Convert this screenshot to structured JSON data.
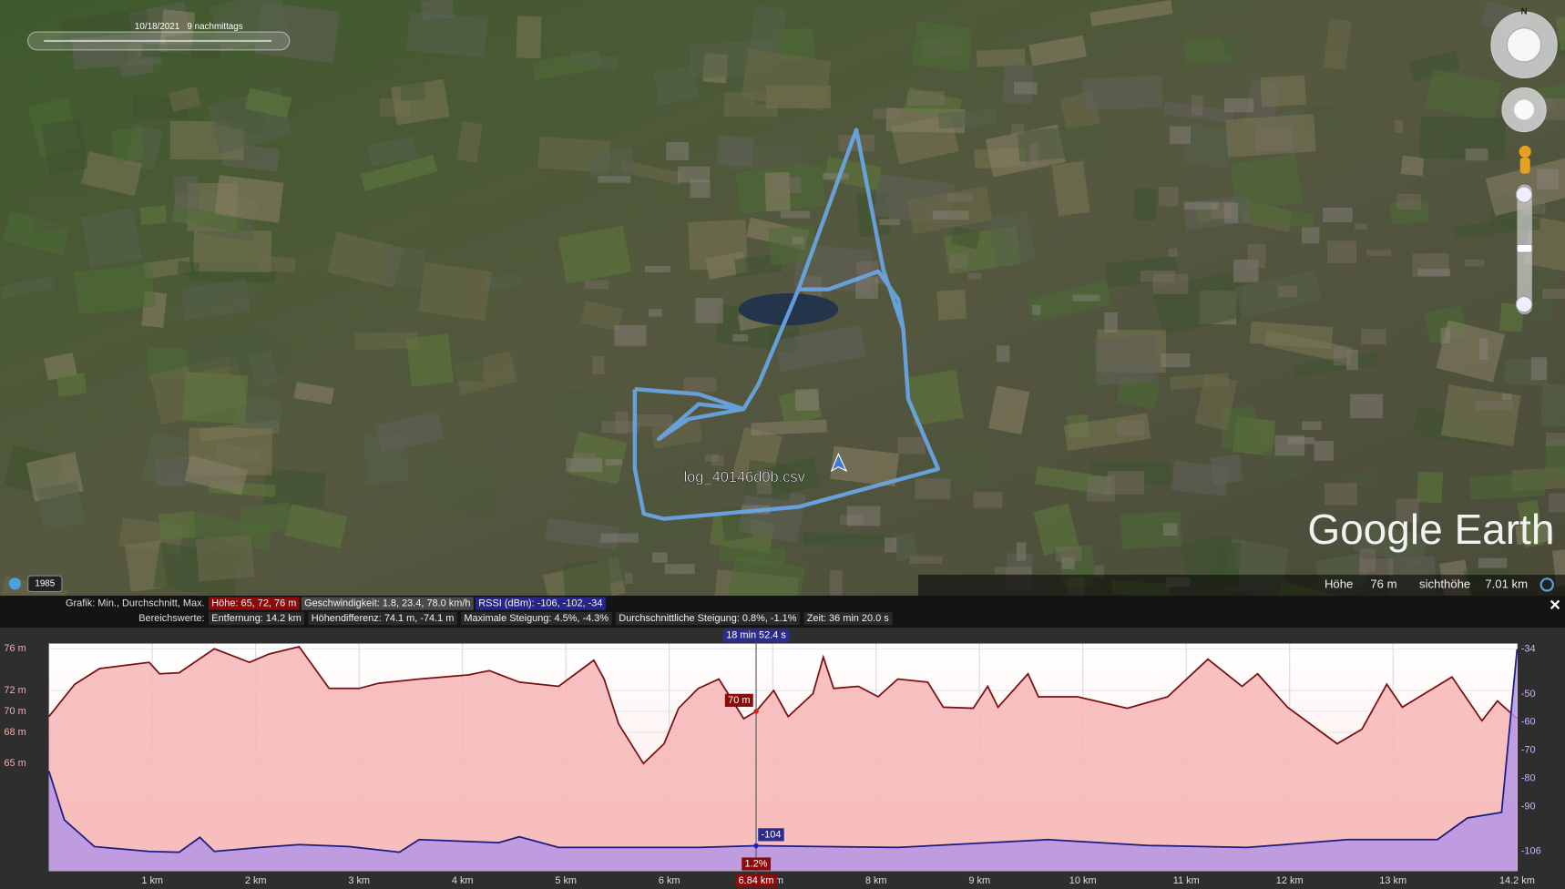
{
  "map": {
    "timestamp": "10/18/2021   9 nachmittags",
    "year": "1985",
    "track_label": "log_40146d0b.csv",
    "brand": "Google Earth",
    "compass": "N",
    "status": {
      "elevation_caption": "Höhe",
      "elevation": "76 m",
      "eye_caption": "sichthöhe",
      "eye": "7.01 km"
    }
  },
  "header": {
    "rows": [
      {
        "caption": "Grafik: Min., Durchschnitt, Max.",
        "items": [
          "Höhe: 65, 72, 76 m",
          "Geschwindigkeit: 1.8, 23.4, 78.0 km/h",
          "RSSI (dBm): -106, -102, -34"
        ]
      },
      {
        "caption": "Bereichswerte:",
        "items": [
          "Entfernung: 14.2 km",
          "Höhendifferenz: 74.1 m, -74.1 m",
          "Maximale Steigung: 4.5%, -4.3%",
          "Durchschnittliche Steigung: 0.8%, -1.1%",
          "Zeit: 36 min 20.0 s"
        ]
      }
    ]
  },
  "chart_data": {
    "type": "line",
    "xlim": [
      0,
      14.2
    ],
    "xticks": [
      {
        "value": 1,
        "label": "1 km"
      },
      {
        "value": 2,
        "label": "2 km"
      },
      {
        "value": 3,
        "label": "3 km"
      },
      {
        "value": 4,
        "label": "4 km"
      },
      {
        "value": 5,
        "label": "5 km"
      },
      {
        "value": 6,
        "label": "6 km"
      },
      {
        "value": 7,
        "label": "7 km"
      },
      {
        "value": 8,
        "label": "8 km"
      },
      {
        "value": 9,
        "label": "9 km"
      },
      {
        "value": 10,
        "label": "10 km"
      },
      {
        "value": 11,
        "label": "11 km"
      },
      {
        "value": 12,
        "label": "12 km"
      },
      {
        "value": 13,
        "label": "13 km"
      },
      {
        "value": 14.2,
        "label": "14.2 km"
      }
    ],
    "ylim": [
      54.7,
      76.5
    ],
    "yticks": [
      {
        "value": 76,
        "label": "76 m"
      },
      {
        "value": 72,
        "label": "72 m"
      },
      {
        "value": 70,
        "label": "70 m"
      },
      {
        "value": 68,
        "label": "68 m"
      },
      {
        "value": 65,
        "label": "65 m"
      }
    ],
    "y2lim": [
      -113,
      -32
    ],
    "y2ticks": [
      -34,
      -50,
      -60,
      -70,
      -80,
      -90,
      -106
    ],
    "grid": true,
    "series": [
      {
        "color": "#7a1010",
        "fill": "#f7b6b6",
        "x": [
          0,
          0.25,
          0.49,
          0.97,
          1.07,
          1.26,
          1.6,
          1.94,
          2.13,
          2.42,
          2.71,
          3.0,
          3.19,
          3.58,
          4.06,
          4.26,
          4.55,
          4.93,
          5.27,
          5.37,
          5.51,
          5.75,
          5.95,
          6.09,
          6.28,
          6.48,
          6.72,
          6.84,
          7.01,
          7.15,
          7.39,
          7.49,
          7.59,
          7.83,
          8.02,
          8.21,
          8.5,
          8.65,
          8.94,
          9.08,
          9.18,
          9.47,
          9.57,
          9.95,
          10.43,
          10.82,
          11.21,
          11.54,
          11.69,
          11.98,
          12.46,
          12.7,
          12.94,
          13.09,
          13.57,
          13.86,
          14.01,
          14.2
        ],
        "values": [
          69.5,
          72.6,
          74.1,
          74.7,
          73.6,
          73.7,
          76.0,
          74.7,
          75.5,
          76.2,
          72.2,
          72.2,
          72.7,
          73.1,
          73.5,
          73.9,
          72.8,
          72.4,
          74.9,
          73.1,
          68.8,
          65.0,
          66.9,
          70.3,
          72.2,
          73.1,
          69.3,
          70,
          72.0,
          69.5,
          71.7,
          75.2,
          72.2,
          72.4,
          71.4,
          73.1,
          72.8,
          70.4,
          70.3,
          72.4,
          70.4,
          73.6,
          71.4,
          71.4,
          70.3,
          71.4,
          75.0,
          72.4,
          73.6,
          70.4,
          66.9,
          68.3,
          72.6,
          70.4,
          73.3,
          69.1,
          71.0,
          69.3
        ]
      },
      {
        "color": "#1c1c80",
        "fill": "#b596e6",
        "axis": "y2",
        "x": [
          0,
          0.15,
          0.44,
          0.97,
          1.26,
          1.46,
          1.6,
          2.04,
          2.42,
          2.91,
          3.39,
          3.58,
          4.35,
          4.55,
          4.93,
          6.28,
          6.84,
          8.21,
          9.66,
          10.63,
          11.59,
          12.56,
          13.43,
          13.72,
          14.05,
          14.2
        ],
        "values": [
          -77.4,
          -94.8,
          -104.3,
          -106,
          -106.3,
          -101,
          -106,
          -104.6,
          -103.6,
          -104.3,
          -106.3,
          -101.8,
          -102.9,
          -100.8,
          -104.6,
          -104.6,
          -104,
          -104.6,
          -101.8,
          -103.9,
          -104.6,
          -101.8,
          -101.8,
          -94.1,
          -92.1,
          -34
        ]
      }
    ],
    "cursor": {
      "x": 6.84,
      "x_label": "6.84 km",
      "time": "18 min 52.4 s",
      "elevation": 70,
      "elevation_label": "70 m",
      "rssi": -104,
      "slope_label": "1.2%"
    }
  }
}
